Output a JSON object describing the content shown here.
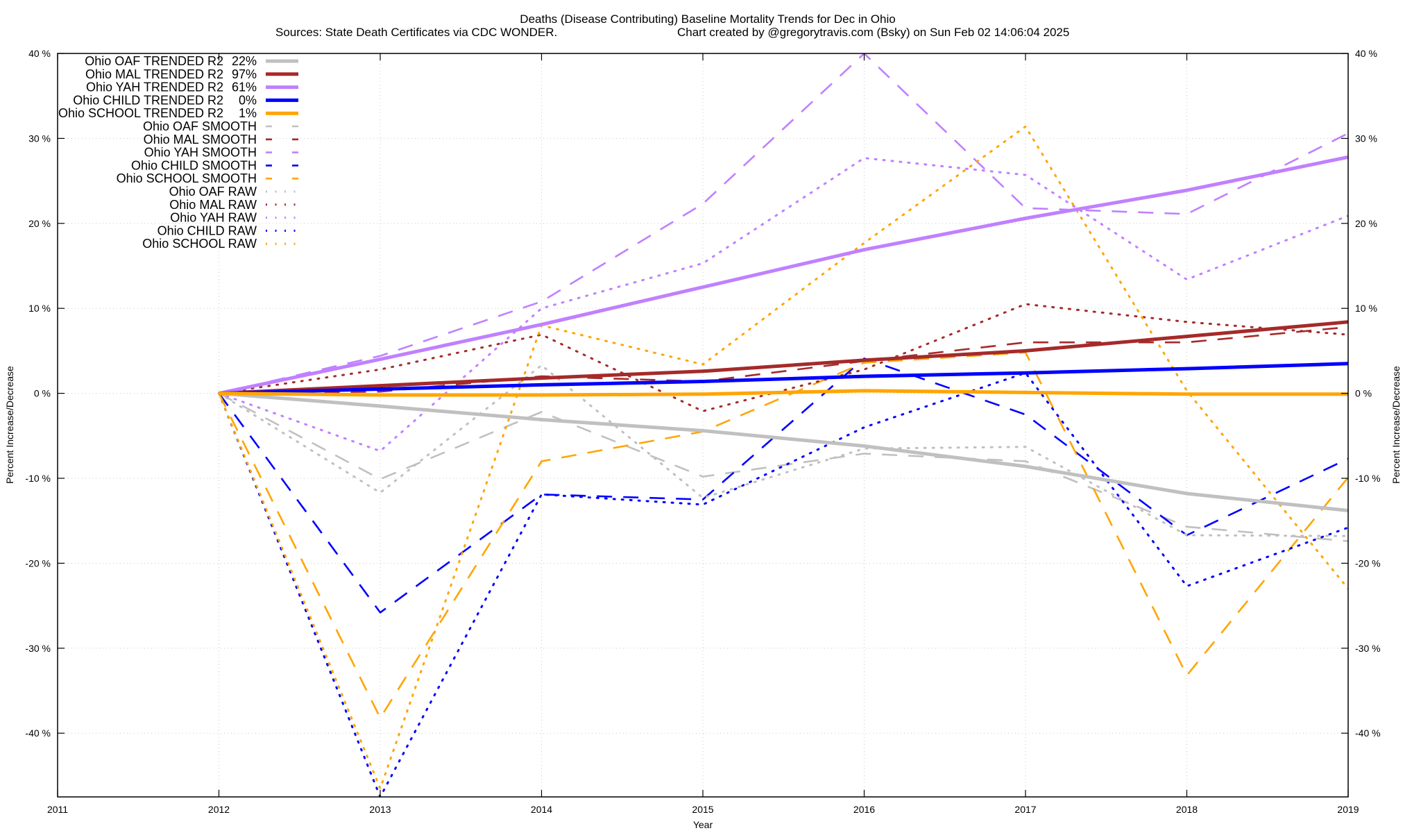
{
  "chart_data": {
    "type": "line",
    "title": "Deaths (Disease Contributing)  Baseline Mortality Trends for Dec in Ohio",
    "subtitle_left": "Sources: State Death Certificates via CDC WONDER.",
    "subtitle_right": "Chart created by @gregorytravis.com (Bsky) on Sun Feb 02 14:06:04 2025",
    "xlabel": "Year",
    "ylabel": "Percent Increase/Decrease",
    "ylabel_right": "Percent Increase/Decrease",
    "xlim": [
      2011,
      2019
    ],
    "ylim": [
      -47.5,
      40
    ],
    "x_ticks": [
      "2011",
      "2012",
      "2013",
      "2014",
      "2015",
      "2016",
      "2017",
      "2018",
      "2019"
    ],
    "y_ticks": [
      40,
      30,
      20,
      10,
      0,
      -10,
      -20,
      -30,
      -40
    ],
    "y_tick_labels": [
      "40 %",
      "30 %",
      "20 %",
      "10 %",
      "0 %",
      "-10 %",
      "-20 %",
      "-30 %",
      "-40 %"
    ],
    "grid": true,
    "legend_position": "top-left",
    "x": [
      2012,
      2013,
      2014,
      2015,
      2016,
      2017,
      2018,
      2019
    ],
    "series": [
      {
        "name": "Ohio OAF TRENDED R2  22%",
        "label": "Ohio OAF TRENDED R2",
        "r2": "22%",
        "style": "solid",
        "color": "#c0c0c0",
        "values": [
          0,
          -1.5,
          -3.1,
          -4.4,
          -6.2,
          -8.6,
          -11.8,
          -13.8
        ]
      },
      {
        "name": "Ohio MAL TRENDED R2  97%",
        "label": "Ohio MAL TRENDED R2",
        "r2": "97%",
        "style": "solid",
        "color": "#a52a2a",
        "values": [
          0,
          0.9,
          1.8,
          2.6,
          3.9,
          5.0,
          6.7,
          8.4
        ]
      },
      {
        "name": "Ohio YAH TRENDED R2  61%",
        "label": "Ohio YAH TRENDED R2",
        "r2": "61%",
        "style": "solid",
        "color": "#c080ff",
        "values": [
          0,
          4.0,
          8.1,
          12.5,
          16.9,
          20.6,
          23.9,
          27.8
        ]
      },
      {
        "name": "Ohio CHILD TRENDED R2   0%",
        "label": "Ohio CHILD TRENDED R2",
        "r2": "0%",
        "style": "solid",
        "color": "#0000ff",
        "values": [
          0,
          0.5,
          1.0,
          1.4,
          2.0,
          2.4,
          2.9,
          3.5
        ]
      },
      {
        "name": "Ohio SCHOOL TRENDED R2   1%",
        "label": "Ohio SCHOOL TRENDED R2",
        "r2": "1%",
        "style": "solid",
        "color": "#ffa500",
        "values": [
          0,
          -0.2,
          -0.2,
          -0.1,
          0.3,
          0.1,
          -0.1,
          -0.1
        ]
      },
      {
        "name": "Ohio OAF SMOOTH",
        "label": "Ohio OAF SMOOTH",
        "r2": "",
        "style": "dashed",
        "color": "#c0c0c0",
        "values": [
          0,
          -10.1,
          -2.2,
          -9.8,
          -7.1,
          -8.0,
          -15.7,
          -17.4
        ]
      },
      {
        "name": "Ohio MAL SMOOTH",
        "label": "Ohio MAL SMOOTH",
        "r2": "",
        "style": "dashed",
        "color": "#a52a2a",
        "values": [
          0,
          0.2,
          2.0,
          1.4,
          3.8,
          6.0,
          6.0,
          7.8
        ]
      },
      {
        "name": "Ohio YAH SMOOTH",
        "label": "Ohio YAH SMOOTH",
        "r2": "",
        "style": "dashed",
        "color": "#c080ff",
        "values": [
          0,
          4.4,
          10.8,
          22.3,
          40.0,
          21.8,
          21.1,
          30.6
        ]
      },
      {
        "name": "Ohio CHILD SMOOTH",
        "label": "Ohio CHILD SMOOTH",
        "r2": "",
        "style": "dashed",
        "color": "#0000ff",
        "values": [
          0,
          -25.8,
          -11.9,
          -12.5,
          4.1,
          -2.5,
          -16.7,
          -7.7
        ]
      },
      {
        "name": "Ohio SCHOOL SMOOTH",
        "label": "Ohio SCHOOL SMOOTH",
        "r2": "",
        "style": "dashed",
        "color": "#ffa500",
        "values": [
          0,
          -38.2,
          -8.0,
          -4.5,
          3.6,
          4.8,
          -33.2,
          -9.9
        ]
      },
      {
        "name": "Ohio OAF RAW",
        "label": "Ohio OAF RAW",
        "r2": "",
        "style": "dotted",
        "color": "#c0c0c0",
        "values": [
          0,
          -11.7,
          3.3,
          -12.3,
          -6.5,
          -6.3,
          -16.7,
          -16.8
        ]
      },
      {
        "name": "Ohio MAL RAW",
        "label": "Ohio MAL RAW",
        "r2": "",
        "style": "dotted",
        "color": "#a52a2a",
        "values": [
          0,
          2.8,
          6.9,
          -2.1,
          2.8,
          10.5,
          8.4,
          6.9
        ]
      },
      {
        "name": "Ohio YAH RAW",
        "label": "Ohio YAH RAW",
        "r2": "",
        "style": "dotted",
        "color": "#c080ff",
        "values": [
          0,
          -6.8,
          10.0,
          15.3,
          27.7,
          25.7,
          13.4,
          20.9
        ]
      },
      {
        "name": "Ohio CHILD RAW",
        "label": "Ohio CHILD RAW",
        "r2": "",
        "style": "dotted",
        "color": "#0000ff",
        "values": [
          0,
          -47.5,
          -11.9,
          -13.1,
          -4.0,
          2.4,
          -22.7,
          -15.8
        ]
      },
      {
        "name": "Ohio SCHOOL RAW",
        "label": "Ohio SCHOOL RAW",
        "r2": "",
        "style": "dotted",
        "color": "#ffa500",
        "values": [
          0,
          -46.5,
          8.0,
          3.4,
          17.7,
          31.4,
          0.3,
          -23.0
        ]
      }
    ]
  }
}
